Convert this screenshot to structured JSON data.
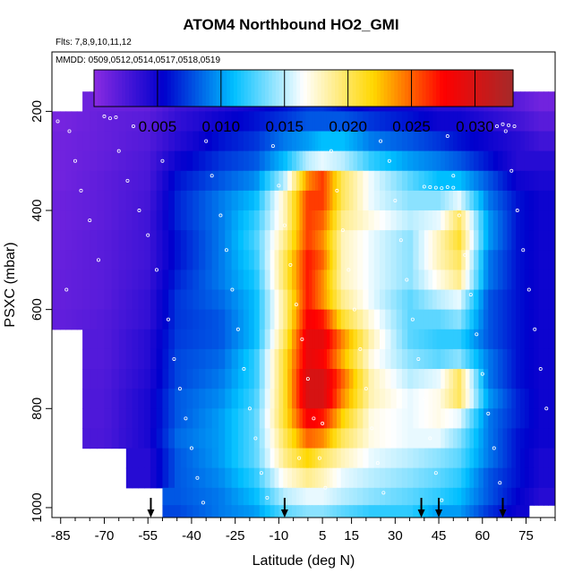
{
  "chart_data": {
    "type": "heatmap",
    "title": "ATOM4 Northbound HO2_GMI",
    "subtitle_flights": "Flts: 7,8,9,10,11,12",
    "subtitle_dates": "MMDD: 0509,0512,0514,0517,0518,0519",
    "xlabel": "Latitude (deg N)",
    "ylabel": "PSXC (mbar)",
    "xlim": [
      -88,
      85
    ],
    "ylim": [
      1020,
      80
    ],
    "x_ticks": [
      -85,
      -70,
      -55,
      -40,
      -25,
      -10,
      5,
      15,
      30,
      45,
      60,
      75
    ],
    "y_ticks": [
      200,
      400,
      600,
      800,
      1000
    ],
    "colorbar": {
      "range": [
        0,
        0.033
      ],
      "ticks": [
        0.005,
        0.01,
        0.015,
        0.02,
        0.025,
        0.03
      ],
      "tick_labels": [
        "0.005",
        "0.010",
        "0.015",
        "0.020",
        "0.025",
        "0.030"
      ],
      "colors": [
        "#8a2be2",
        "#0000cd",
        "#00bfff",
        "#ffffff",
        "#ffd700",
        "#ff0000",
        "#a52a2a"
      ]
    },
    "pressure_levels": [
      180,
      220,
      260,
      300,
      340,
      380,
      420,
      460,
      500,
      540,
      580,
      620,
      660,
      700,
      740,
      780,
      820,
      860,
      900,
      940,
      980,
      1010
    ],
    "profiles": [
      {
        "lat": -85,
        "values": [
          null,
          0.0008,
          0.001,
          0.001,
          0.001,
          0.0012,
          0.0012,
          0.0013,
          0.0014,
          0.0015,
          0.0015,
          0.0016,
          null,
          null,
          null,
          null,
          null,
          null,
          null,
          null,
          null,
          null
        ]
      },
      {
        "lat": -70,
        "values": [
          0.0012,
          0.0015,
          0.0015,
          0.0016,
          0.0018,
          0.0018,
          0.0018,
          0.002,
          0.002,
          0.002,
          0.002,
          0.0022,
          0.0022,
          0.0022,
          0.0023,
          0.0024,
          0.0024,
          0.0025,
          null,
          null,
          null,
          null
        ]
      },
      {
        "lat": -55,
        "values": [
          0.0015,
          0.002,
          0.0022,
          0.0025,
          0.0026,
          0.0028,
          0.003,
          0.003,
          0.003,
          0.0032,
          0.0035,
          0.0035,
          0.004,
          0.004,
          0.0042,
          0.0045,
          0.0045,
          0.0045,
          0.004,
          0.004,
          null,
          null
        ]
      },
      {
        "lat": -45,
        "values": [
          0.003,
          0.0035,
          0.004,
          0.005,
          0.006,
          0.0065,
          0.0065,
          0.006,
          0.006,
          0.0065,
          0.007,
          0.007,
          0.0072,
          0.0075,
          0.0075,
          0.008,
          0.008,
          0.0085,
          0.008,
          0.008,
          0.008,
          0.0075
        ]
      },
      {
        "lat": -30,
        "values": [
          0.004,
          0.005,
          0.006,
          0.007,
          0.008,
          0.009,
          0.009,
          0.009,
          0.009,
          0.009,
          0.0085,
          0.008,
          0.008,
          0.0085,
          0.009,
          0.0095,
          0.01,
          0.01,
          0.01,
          0.0095,
          0.009,
          0.009
        ]
      },
      {
        "lat": -18,
        "values": [
          0.005,
          0.006,
          0.007,
          0.008,
          0.0095,
          0.011,
          0.012,
          0.0125,
          0.012,
          0.0115,
          0.011,
          0.011,
          0.011,
          0.012,
          0.012,
          0.0125,
          0.013,
          0.013,
          0.013,
          0.012,
          0.011,
          0.01
        ]
      },
      {
        "lat": -8,
        "values": [
          0.006,
          0.007,
          0.009,
          0.011,
          0.015,
          0.018,
          0.018,
          0.019,
          0.02,
          0.02,
          0.019,
          0.019,
          0.02,
          0.021,
          0.021,
          0.021,
          0.021,
          0.02,
          0.019,
          0.017,
          0.015,
          0.013
        ]
      },
      {
        "lat": 0,
        "values": [
          0.007,
          0.008,
          0.01,
          0.015,
          0.024,
          0.026,
          0.026,
          0.026,
          0.027,
          0.027,
          0.027,
          0.028,
          0.029,
          0.029,
          0.03,
          0.03,
          0.028,
          0.025,
          0.022,
          0.019,
          0.016,
          0.014
        ]
      },
      {
        "lat": 5,
        "values": [
          0.007,
          0.008,
          0.011,
          0.016,
          0.026,
          0.026,
          0.025,
          0.024,
          0.025,
          0.024,
          0.024,
          0.027,
          0.029,
          0.028,
          0.03,
          0.03,
          0.027,
          0.024,
          0.02,
          0.018,
          0.016,
          0.014
        ]
      },
      {
        "lat": 12,
        "values": [
          0.006,
          0.008,
          0.011,
          0.015,
          0.02,
          0.02,
          0.019,
          0.018,
          0.018,
          0.018,
          0.019,
          0.021,
          0.024,
          0.023,
          0.025,
          0.024,
          0.022,
          0.02,
          0.018,
          0.016,
          0.015,
          0.013
        ]
      },
      {
        "lat": 22,
        "values": [
          0.005,
          0.007,
          0.009,
          0.012,
          0.016,
          0.016,
          0.017,
          0.016,
          0.016,
          0.016,
          0.016,
          0.017,
          0.018,
          0.017,
          0.018,
          0.018,
          0.017,
          0.017,
          0.016,
          0.015,
          0.014,
          0.012
        ]
      },
      {
        "lat": 35,
        "values": [
          0.005,
          0.006,
          0.008,
          0.01,
          0.013,
          0.014,
          0.015,
          0.014,
          0.014,
          0.014,
          0.013,
          0.013,
          0.013,
          0.014,
          0.015,
          0.016,
          0.016,
          0.016,
          0.015,
          0.014,
          0.013,
          0.012
        ]
      },
      {
        "lat": 45,
        "values": [
          0.004,
          0.005,
          0.007,
          0.009,
          0.011,
          0.014,
          0.016,
          0.018,
          0.018,
          0.017,
          0.015,
          0.013,
          0.012,
          0.013,
          0.016,
          0.017,
          0.017,
          0.016,
          0.014,
          0.013,
          0.012,
          0.01
        ]
      },
      {
        "lat": 52,
        "values": [
          0.004,
          0.005,
          0.006,
          0.008,
          0.011,
          0.016,
          0.02,
          0.021,
          0.02,
          0.019,
          0.016,
          0.014,
          0.012,
          0.014,
          0.02,
          0.02,
          0.016,
          0.014,
          0.013,
          0.012,
          0.011,
          0.01
        ]
      },
      {
        "lat": 62,
        "values": [
          0.003,
          0.004,
          0.005,
          0.006,
          0.008,
          0.009,
          0.01,
          0.01,
          0.009,
          0.009,
          0.008,
          0.008,
          0.008,
          0.009,
          0.009,
          0.01,
          0.009,
          0.009,
          0.009,
          0.008,
          0.008,
          0.007
        ]
      },
      {
        "lat": 72,
        "values": [
          0.002,
          0.003,
          0.004,
          0.004,
          0.005,
          0.006,
          0.006,
          0.006,
          0.006,
          0.006,
          0.006,
          0.006,
          0.006,
          0.006,
          0.006,
          0.0065,
          0.0065,
          0.006,
          0.006,
          0.006,
          0.0055,
          0.005
        ]
      },
      {
        "lat": 80,
        "values": [
          0.001,
          0.002,
          0.003,
          0.004,
          0.0045,
          0.005,
          0.005,
          0.005,
          0.005,
          0.005,
          0.005,
          0.005,
          0.005,
          0.005,
          0.005,
          0.005,
          0.005,
          0.005,
          0.0045,
          0.0045,
          0.004,
          null
        ]
      }
    ],
    "profile_markers_lat": [
      -54,
      -8,
      39,
      45,
      67
    ],
    "sample_points": [
      [
        -82,
        240
      ],
      [
        -80,
        300
      ],
      [
        -78,
        360
      ],
      [
        -75,
        420
      ],
      [
        -72,
        500
      ],
      [
        -86,
        220
      ],
      [
        -83,
        560
      ],
      [
        -60,
        230
      ],
      [
        -65,
        280
      ],
      [
        -62,
        340
      ],
      [
        -58,
        400
      ],
      [
        -55,
        450
      ],
      [
        -52,
        520
      ],
      [
        -50,
        300
      ],
      [
        -48,
        620
      ],
      [
        -46,
        700
      ],
      [
        -44,
        760
      ],
      [
        -42,
        820
      ],
      [
        -40,
        880
      ],
      [
        -38,
        940
      ],
      [
        -36,
        990
      ],
      [
        -35,
        260
      ],
      [
        -33,
        330
      ],
      [
        -30,
        410
      ],
      [
        -28,
        480
      ],
      [
        -26,
        560
      ],
      [
        -24,
        640
      ],
      [
        -22,
        720
      ],
      [
        -20,
        800
      ],
      [
        -18,
        860
      ],
      [
        -16,
        930
      ],
      [
        -14,
        980
      ],
      [
        -12,
        270
      ],
      [
        -10,
        350
      ],
      [
        -8,
        430
      ],
      [
        -6,
        510
      ],
      [
        -4,
        590
      ],
      [
        -2,
        660
      ],
      [
        0,
        740
      ],
      [
        2,
        820
      ],
      [
        4,
        900
      ],
      [
        6,
        960
      ],
      [
        8,
        280
      ],
      [
        10,
        360
      ],
      [
        12,
        440
      ],
      [
        14,
        520
      ],
      [
        16,
        600
      ],
      [
        18,
        680
      ],
      [
        20,
        760
      ],
      [
        22,
        840
      ],
      [
        24,
        910
      ],
      [
        26,
        970
      ],
      [
        28,
        300
      ],
      [
        30,
        380
      ],
      [
        32,
        460
      ],
      [
        34,
        540
      ],
      [
        36,
        620
      ],
      [
        38,
        700
      ],
      [
        40,
        780
      ],
      [
        42,
        860
      ],
      [
        44,
        930
      ],
      [
        46,
        985
      ],
      [
        48,
        250
      ],
      [
        50,
        330
      ],
      [
        52,
        410
      ],
      [
        54,
        490
      ],
      [
        56,
        570
      ],
      [
        58,
        650
      ],
      [
        60,
        730
      ],
      [
        62,
        810
      ],
      [
        64,
        880
      ],
      [
        66,
        950
      ],
      [
        68,
        240
      ],
      [
        70,
        320
      ],
      [
        72,
        400
      ],
      [
        74,
        480
      ],
      [
        76,
        560
      ],
      [
        78,
        640
      ],
      [
        80,
        720
      ],
      [
        82,
        800
      ],
      [
        65,
        230
      ],
      [
        67,
        226
      ],
      [
        69,
        228
      ],
      [
        71,
        230
      ],
      [
        -70,
        210
      ],
      [
        -68,
        214
      ],
      [
        -66,
        212
      ],
      [
        40,
        352
      ],
      [
        42,
        353
      ],
      [
        44,
        354
      ],
      [
        46,
        355
      ],
      [
        48,
        353
      ],
      [
        50,
        354
      ],
      [
        5,
        830
      ],
      [
        -3,
        900
      ],
      [
        25,
        260
      ]
    ]
  }
}
